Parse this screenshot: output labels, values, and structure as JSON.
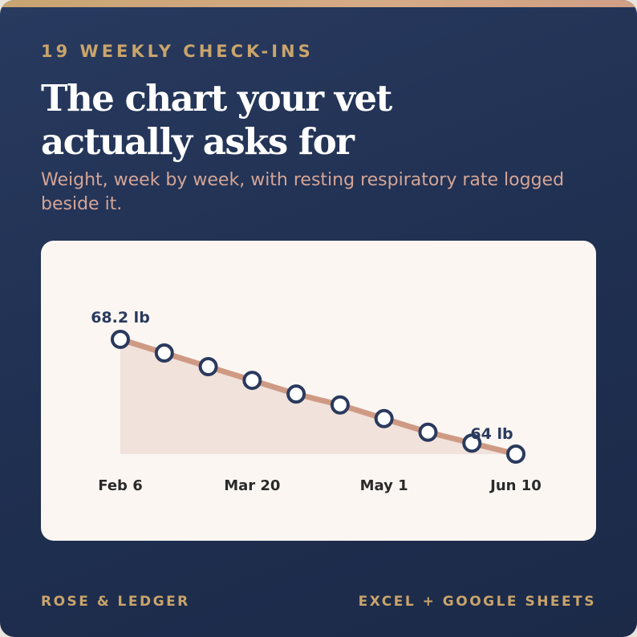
{
  "eyebrow": "19 WEEKLY CHECK-INS",
  "headline": {
    "line1": "The chart your vet",
    "line2": "actually asks for"
  },
  "subtitle": "Weight, week by week, with resting respiratory rate logged beside it.",
  "footer": {
    "brand": "ROSE & LEDGER",
    "platforms": "EXCEL + GOOGLE SHEETS"
  },
  "colors": {
    "background": "#23345a",
    "accent": "#c9a46b",
    "line": "#cf9a84",
    "area": "#f1e2db",
    "marker": "#2a3a5e",
    "panel": "#fbf6f2"
  },
  "chart_data": {
    "type": "line",
    "x": [
      "Feb 6",
      "Feb 20",
      "Mar 6",
      "Mar 20",
      "Apr 3",
      "Apr 17",
      "May 1",
      "May 15",
      "May 29",
      "Jun 10"
    ],
    "values": [
      68.2,
      67.7,
      67.2,
      66.7,
      66.2,
      65.8,
      65.3,
      64.8,
      64.4,
      64.0
    ],
    "unit": "lb",
    "xticks": [
      "Feb 6",
      "Mar 20",
      "May 1",
      "Jun 10"
    ],
    "data_labels": [
      {
        "index": 0,
        "text": "68.2 lb"
      },
      {
        "index": 9,
        "text": "64 lb"
      }
    ],
    "area_fill": true,
    "grid": false
  }
}
